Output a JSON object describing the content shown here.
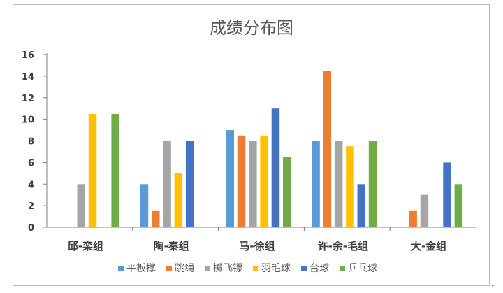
{
  "chart_data": {
    "type": "bar",
    "title": "成绩分布图",
    "xlabel": "",
    "ylabel": "",
    "categories": [
      "邱-栾组",
      "陶-秦组",
      "马-徐组",
      "许-余-毛组",
      "大-金组"
    ],
    "ylim": [
      0,
      16
    ],
    "yticks": [
      0,
      2,
      4,
      6,
      8,
      10,
      12,
      14,
      16
    ],
    "grid": false,
    "legend_position": "bottom",
    "series": [
      {
        "name": "平板撑",
        "color": "#5b9bd5",
        "values": [
          0,
          4,
          9,
          8,
          0
        ]
      },
      {
        "name": "跳绳",
        "color": "#ed7d31",
        "values": [
          0,
          1.5,
          8.5,
          14.5,
          1.5
        ]
      },
      {
        "name": "掷飞镖",
        "color": "#a5a5a5",
        "values": [
          4,
          8,
          8,
          8,
          3
        ]
      },
      {
        "name": "羽毛球",
        "color": "#ffc000",
        "values": [
          10.5,
          5,
          8.5,
          7.5,
          0
        ]
      },
      {
        "name": "台球",
        "color": "#4472c4",
        "values": [
          0,
          8,
          11,
          4,
          6
        ]
      },
      {
        "name": "乒乓球",
        "color": "#70ad47",
        "values": [
          10.5,
          0,
          6.5,
          8,
          4
        ]
      }
    ]
  },
  "page": {
    "corner_mark": "↵"
  }
}
